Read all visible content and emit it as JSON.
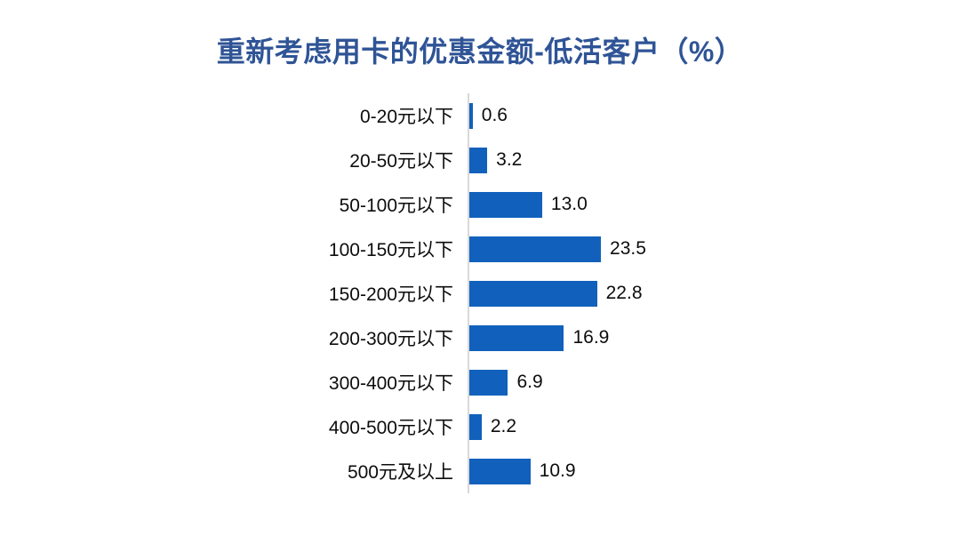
{
  "title": {
    "text": "重新考虑用卡的优惠金额-低活客户（%）",
    "color": "#2F5496"
  },
  "chart_data": {
    "type": "bar",
    "orientation": "horizontal",
    "title": "重新考虑用卡的优惠金额-低活客户（%）",
    "categories": [
      "0-20元以下",
      "20-50元以下",
      "50-100元以下",
      "100-150元以下",
      "150-200元以下",
      "200-300元以下",
      "300-400元以下",
      "400-500元以下",
      "500元及以上"
    ],
    "values": [
      0.6,
      3.2,
      13.0,
      23.5,
      22.8,
      16.9,
      6.9,
      2.2,
      10.9
    ],
    "value_labels": [
      "0.6",
      "3.2",
      "13.0",
      "23.5",
      "22.8",
      "16.9",
      "6.9",
      "2.2",
      "10.9"
    ],
    "xlabel": "",
    "ylabel": "",
    "xlim": [
      0,
      25
    ],
    "grid": false,
    "legend": "none",
    "bar_color": "#1161BC",
    "axis_line_color": "#D9D9D9",
    "label_color": "#0d0d0d"
  }
}
